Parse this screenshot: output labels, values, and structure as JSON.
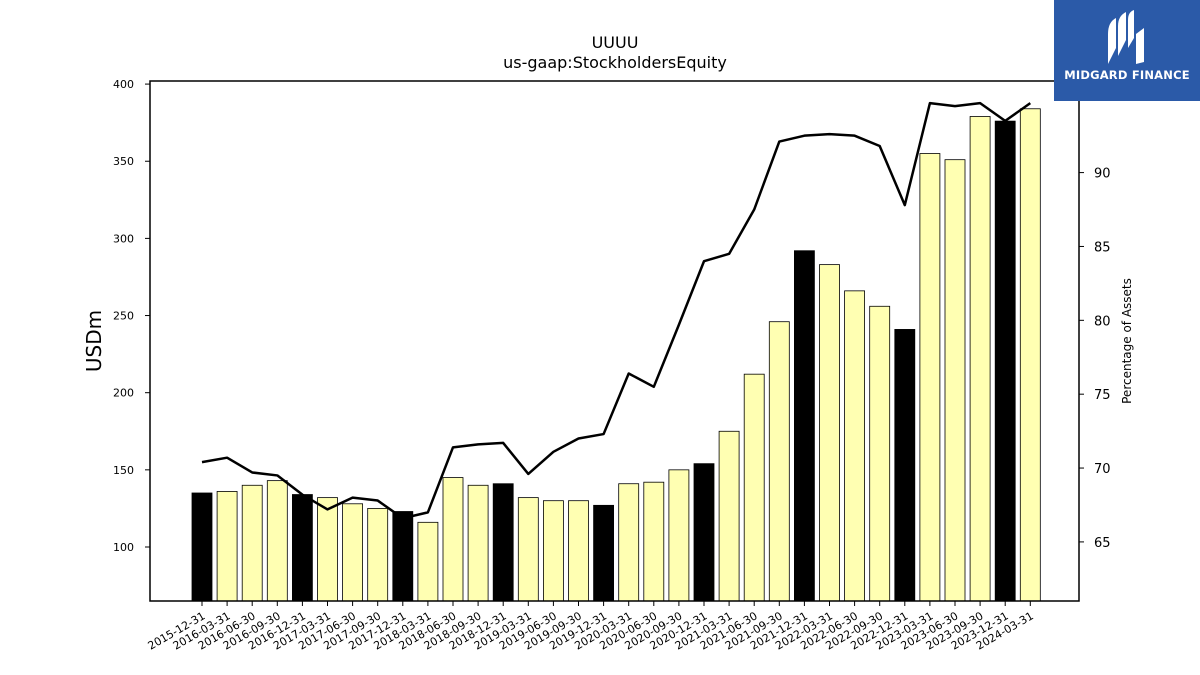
{
  "brand": {
    "name": "MIDGARD FINANCE",
    "bg_color": "#2b5aa8"
  },
  "chart_data": {
    "type": "bar",
    "title": "UUUU",
    "subtitle": "us-gaap:StockholdersEquity",
    "ylabel": "USDm",
    "y2label": "Percentage of Assets",
    "ylim": [
      65,
      402
    ],
    "y2lim": [
      61,
      96.2
    ],
    "yticks": [
      100,
      150,
      200,
      250,
      300,
      350,
      400
    ],
    "y2ticks": [
      65,
      70,
      75,
      80,
      85,
      90
    ],
    "categories": [
      "2015-12-31",
      "2016-03-31",
      "2016-06-30",
      "2016-09-30",
      "2016-12-31",
      "2017-03-31",
      "2017-06-30",
      "2017-09-30",
      "2017-12-31",
      "2018-03-31",
      "2018-06-30",
      "2018-09-30",
      "2018-12-31",
      "2019-03-31",
      "2019-06-30",
      "2019-09-30",
      "2019-12-31",
      "2020-03-31",
      "2020-06-30",
      "2020-09-30",
      "2020-12-31",
      "2021-03-31",
      "2021-06-30",
      "2021-09-30",
      "2021-12-31",
      "2022-03-31",
      "2022-06-30",
      "2022-09-30",
      "2022-12-31",
      "2023-03-31",
      "2023-06-30",
      "2023-09-30",
      "2023-12-31",
      "2024-03-31"
    ],
    "series": [
      {
        "kind": "bar",
        "axis": "left",
        "values": [
          135,
          136,
          140,
          143,
          134,
          132,
          128,
          125,
          123,
          116,
          145,
          140,
          141,
          132,
          130,
          130,
          127,
          141,
          142,
          150,
          154,
          175,
          212,
          246,
          292,
          283,
          266,
          256,
          241,
          355,
          351,
          379,
          376,
          384
        ]
      },
      {
        "kind": "line",
        "axis": "right",
        "color": "#000000",
        "values": [
          70.4,
          70.7,
          69.7,
          69.5,
          68.2,
          67.2,
          68.0,
          67.8,
          66.6,
          67.0,
          71.4,
          71.6,
          71.7,
          69.6,
          71.1,
          72.0,
          72.3,
          76.4,
          75.5,
          79.7,
          84.0,
          84.5,
          87.5,
          92.1,
          92.5,
          92.6,
          92.5,
          91.8,
          87.8,
          94.7,
          94.5,
          94.7,
          93.5,
          94.7
        ]
      }
    ],
    "bar_colors": {
      "default": "#ffffb2",
      "year_end": "#000000"
    },
    "grid": false,
    "legend": "none"
  }
}
